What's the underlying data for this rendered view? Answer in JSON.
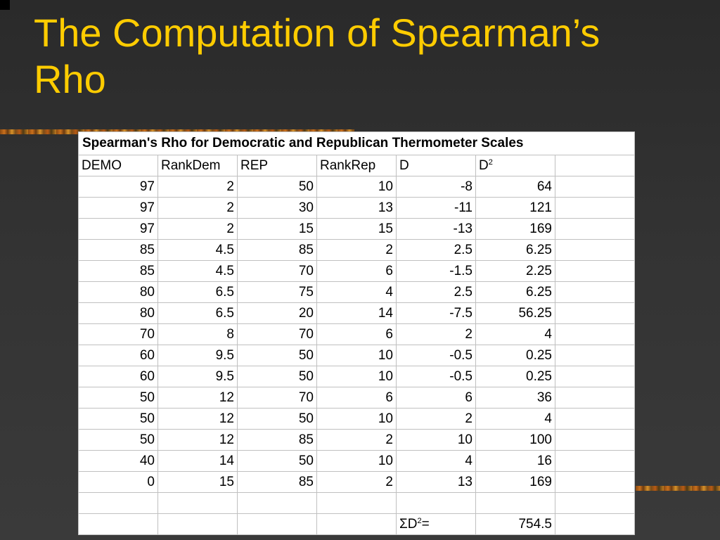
{
  "slide": {
    "title_line1": "The Computation of Spearman’s",
    "title_line2": "Rho"
  },
  "table": {
    "title": "Spearman's Rho for Democratic and Republican Thermometer Scales",
    "headers": [
      "DEMO",
      "RankDem",
      "REP",
      "RankRep",
      "D",
      "D",
      "2"
    ],
    "rows": [
      [
        "97",
        "2",
        "50",
        "10",
        "-8",
        "64"
      ],
      [
        "97",
        "2",
        "30",
        "13",
        "-11",
        "121"
      ],
      [
        "97",
        "2",
        "15",
        "15",
        "-13",
        "169"
      ],
      [
        "85",
        "4.5",
        "85",
        "2",
        "2.5",
        "6.25"
      ],
      [
        "85",
        "4.5",
        "70",
        "6",
        "-1.5",
        "2.25"
      ],
      [
        "80",
        "6.5",
        "75",
        "4",
        "2.5",
        "6.25"
      ],
      [
        "80",
        "6.5",
        "20",
        "14",
        "-7.5",
        "56.25"
      ],
      [
        "70",
        "8",
        "70",
        "6",
        "2",
        "4"
      ],
      [
        "60",
        "9.5",
        "50",
        "10",
        "-0.5",
        "0.25"
      ],
      [
        "60",
        "9.5",
        "50",
        "10",
        "-0.5",
        "0.25"
      ],
      [
        "50",
        "12",
        "70",
        "6",
        "6",
        "36"
      ],
      [
        "50",
        "12",
        "50",
        "10",
        "2",
        "4"
      ],
      [
        "50",
        "12",
        "85",
        "2",
        "10",
        "100"
      ],
      [
        "40",
        "14",
        "50",
        "10",
        "4",
        "16"
      ],
      [
        "0",
        "15",
        "85",
        "2",
        "13",
        "169"
      ]
    ],
    "sum_label_prefix": "ΣD",
    "sum_label_sup": "2",
    "sum_label_suffix": "=",
    "sum_value": "754.5"
  },
  "colors": {
    "title": "#ffcc00",
    "background": "#333333"
  }
}
